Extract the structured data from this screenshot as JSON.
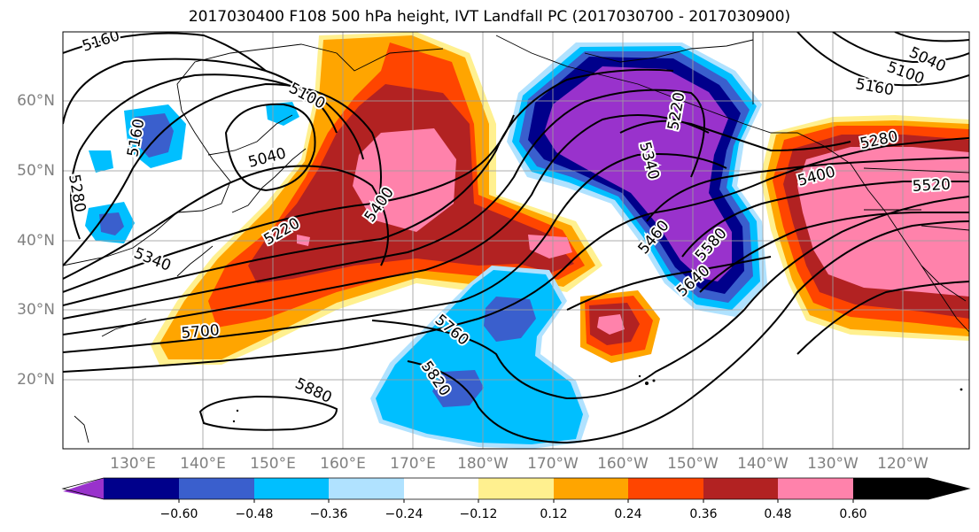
{
  "title": "2017030400 F108 500 hPa height, IVT Landfall PC (2017030700 - 2017030900)",
  "lon_labels": [
    "130°E",
    "140°E",
    "150°E",
    "160°E",
    "170°E",
    "180°W",
    "170°W",
    "160°W",
    "150°W",
    "140°W",
    "130°W",
    "120°W"
  ],
  "lat_labels": [
    "60°N",
    "50°N",
    "40°N",
    "30°N",
    "20°N"
  ],
  "contour_labels": [
    "5160",
    "5100",
    "5040",
    "5160",
    "5280",
    "5220",
    "5400",
    "5340",
    "5700",
    "5760",
    "5820",
    "5880",
    "5340",
    "5460",
    "5580",
    "5640",
    "5280",
    "5400",
    "5520",
    "5040",
    "5100",
    "5160",
    "5220"
  ],
  "colorbar": {
    "colors": [
      "#9932cc",
      "#00008b",
      "#3a5fcd",
      "#00bfff",
      "#b0e2ff",
      "#ffffff",
      "#fff08f",
      "#ffa500",
      "#ff4500",
      "#b22222",
      "#ff82ab"
    ],
    "ticks": [
      "−0.60",
      "−0.48",
      "−0.36",
      "−0.24",
      "−0.12",
      "0.12",
      "0.24",
      "0.36",
      "0.48",
      "0.60"
    ]
  },
  "map": {
    "projection": "cylindrical",
    "extent_lon": [
      "120°E",
      "110°W"
    ],
    "extent_lat": [
      "10°N",
      "70°N"
    ],
    "gridlines": true,
    "filled_field": "IVT Landfall PC",
    "contour_field": "500 hPa height"
  }
}
